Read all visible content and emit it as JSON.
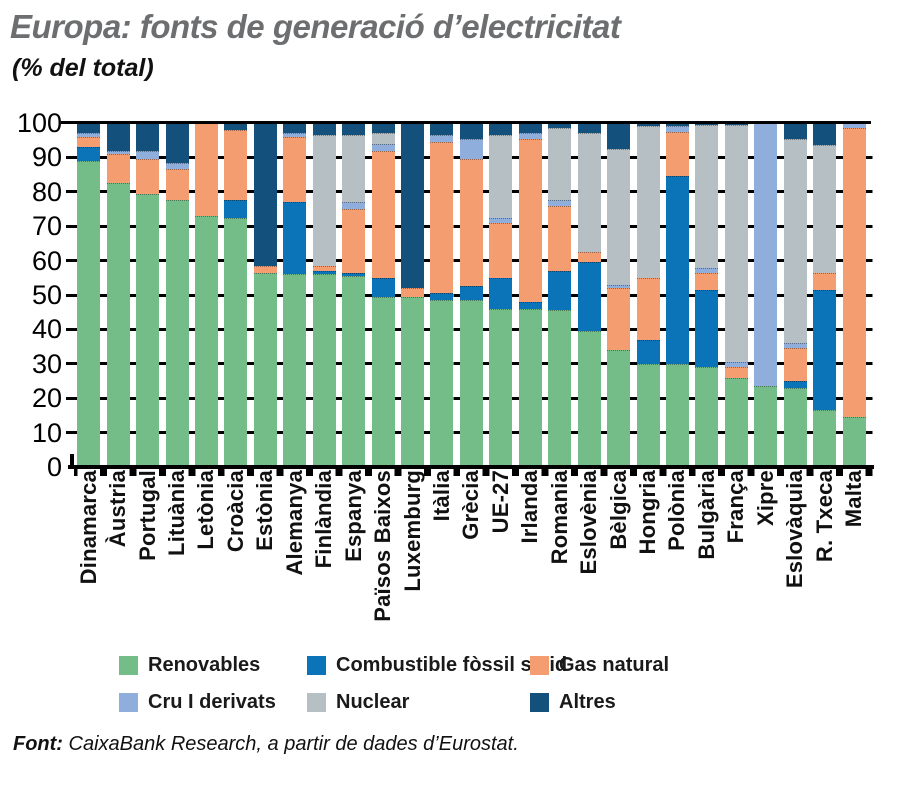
{
  "title": "Europa: fonts de generació d’electricitat",
  "subtitle": "(% del total)",
  "source": {
    "bold": "Font:",
    "text": " CaixaBank Research, a partir de dades d’Eurostat."
  },
  "colors": {
    "renewables": "#74BD88",
    "solid_fossil": "#0B73B8",
    "natural_gas": "#F49D70",
    "crude_oil": "#8FAEDC",
    "nuclear": "#B6BFC4",
    "other": "#14507C",
    "title_gray": "#6C6E70",
    "axis_black": "#000000"
  },
  "y_axis": {
    "ticks": [
      100,
      90,
      80,
      70,
      60,
      50,
      40,
      30,
      20,
      10,
      0
    ]
  },
  "legend": {
    "items": [
      {
        "label": "Renovables",
        "color": "#74BD88"
      },
      {
        "label": "Combustible fòssil sòlid",
        "color": "#0B73B8"
      },
      {
        "label": "Gas natural",
        "color": "#F49D70"
      },
      {
        "label": "Cru I derivats",
        "color": "#8FAEDC"
      },
      {
        "label": "Nuclear",
        "color": "#B6BFC4"
      },
      {
        "label": "Altres",
        "color": "#14507C"
      }
    ]
  },
  "chart_data": {
    "type": "bar",
    "stacked": true,
    "title": "Europa: fonts de generació d’electricitat",
    "ylabel": "% del total",
    "ylim": [
      0,
      100
    ],
    "grid": "dashed horizontal every 10",
    "legend_position": "bottom",
    "categories": [
      "Dinamarca",
      "Àustria",
      "Portugal",
      "Lituània",
      "Letònia",
      "Croàcia",
      "Estònia",
      "Alemanya",
      "Finlàndia",
      "Espanya",
      "Països Baixos",
      "Luxemburg",
      "Itàlia",
      "Grècia",
      "UE-27",
      "Irlanda",
      "Romania",
      "Eslovènia",
      "Bèlgica",
      "Hongria",
      "Polònia",
      "Bulgària",
      "França",
      "Xipre",
      "Eslovàquia",
      "R. Txeca",
      "Malta"
    ],
    "series": [
      {
        "name": "Renovables",
        "color": "#74BD88",
        "values": [
          89,
          82.5,
          79.5,
          77.5,
          73,
          72.5,
          56.5,
          56,
          56,
          55.5,
          49.5,
          49.5,
          48.5,
          48.5,
          46,
          46,
          45.5,
          39.5,
          34,
          30,
          30,
          29,
          26,
          23.5,
          23,
          16.5,
          14.5
        ]
      },
      {
        "name": "Combustible fòssil sòlid",
        "color": "#0B73B8",
        "values": [
          4,
          0,
          0,
          0,
          0,
          5,
          0,
          21,
          1,
          1,
          5.5,
          0,
          2,
          4,
          9,
          2,
          11.5,
          20,
          0,
          7,
          54.5,
          22.5,
          0,
          0,
          2,
          35,
          0
        ]
      },
      {
        "name": "Gas natural",
        "color": "#F49D70",
        "values": [
          3,
          8.5,
          10,
          9,
          27,
          20.5,
          2,
          19,
          1.5,
          18.5,
          37,
          2.5,
          44,
          37,
          16,
          47.5,
          19,
          3,
          18,
          18,
          13,
          5,
          3,
          0,
          9.5,
          5,
          84
        ]
      },
      {
        "name": "Cru I derivats",
        "color": "#8FAEDC",
        "values": [
          1,
          1,
          2.5,
          2,
          0,
          0,
          0,
          1,
          0,
          2,
          2,
          0,
          2,
          6,
          1.5,
          1.5,
          1.5,
          0,
          1,
          0,
          1.5,
          1.5,
          1.5,
          76.5,
          1.5,
          0,
          1.5
        ]
      },
      {
        "name": "Nuclear",
        "color": "#B6BFC4",
        "values": [
          0,
          0,
          0,
          0,
          0,
          0,
          0,
          0,
          38,
          19.5,
          3,
          0,
          0,
          0,
          24,
          0,
          21,
          34.5,
          39.5,
          44,
          0,
          41.5,
          69,
          0,
          59.5,
          37,
          0
        ]
      },
      {
        "name": "Altres",
        "color": "#14507C",
        "values": [
          3,
          8,
          8,
          11.5,
          0,
          2,
          41.5,
          3,
          3.5,
          3.5,
          3,
          48,
          3.5,
          4.5,
          3.5,
          3,
          1.5,
          3,
          7.5,
          1,
          1,
          0.5,
          0.5,
          0,
          4.5,
          6.5,
          0
        ]
      }
    ]
  }
}
